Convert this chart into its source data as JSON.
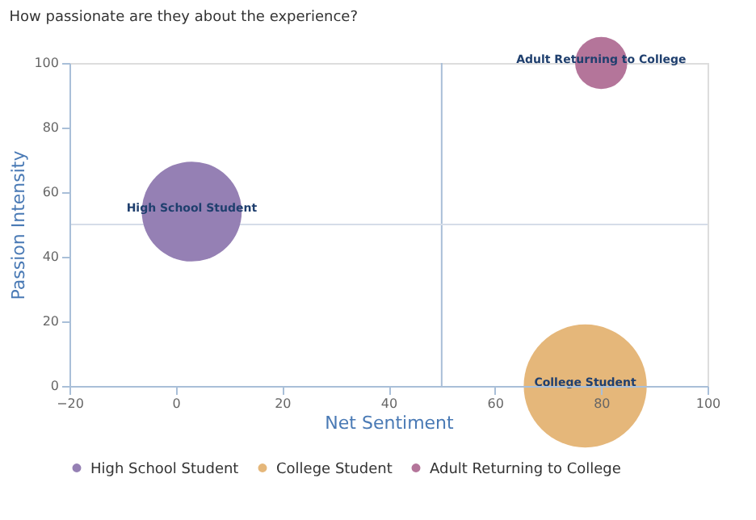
{
  "chart_data": {
    "type": "bubble",
    "title": "How passionate are they about the experience?",
    "xlabel": "Net Sentiment",
    "ylabel": "Passion Intensity",
    "xlim": [
      -20,
      100
    ],
    "xticks": [
      -20,
      0,
      20,
      40,
      60,
      80,
      100
    ],
    "ylim": [
      0,
      100
    ],
    "yticks": [
      0,
      20,
      40,
      60,
      80,
      100
    ],
    "series": [
      {
        "name": "High School Student",
        "color": "#9580b4",
        "x": [
          3
        ],
        "values": [
          54
        ],
        "sizes": [
          0.66
        ]
      },
      {
        "name": "College Student",
        "color": "#e5b77a",
        "x": [
          77
        ],
        "values": [
          0
        ],
        "sizes": [
          1
        ]
      },
      {
        "name": "Adult Returning to College",
        "color": "#b4759a",
        "x": [
          80
        ],
        "values": [
          100
        ],
        "sizes": [
          0.18
        ]
      }
    ],
    "ref_lines": [
      {
        "axis": "x",
        "value": 50,
        "color": "#a9bfd8"
      },
      {
        "axis": "y",
        "value": 50,
        "color": "#d5dde8"
      }
    ],
    "grid": false,
    "legend": "bottom"
  }
}
